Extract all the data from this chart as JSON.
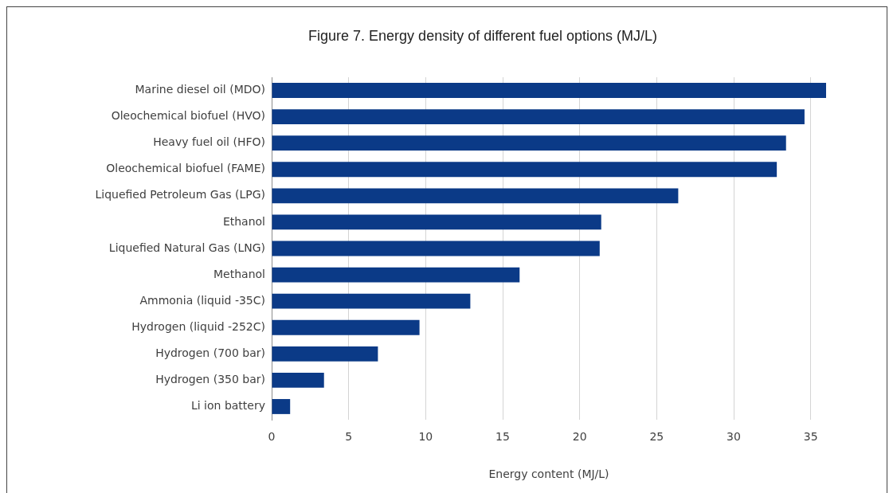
{
  "chart_data": {
    "type": "bar",
    "orientation": "horizontal",
    "title": "Figure 7. Energy density of different fuel options (MJ/L)",
    "xlabel": "Energy content (MJ/L)",
    "categories": [
      "Marine diesel oil (MDO)",
      "Oleochemical biofuel (HVO)",
      "Heavy fuel oil (HFO)",
      "Oleochemical biofuel (FAME)",
      "Liquefied Petroleum Gas (LPG)",
      "Ethanol",
      "Liquefied Natural Gas (LNG)",
      "Methanol",
      "Ammonia (liquid -35C)",
      "Hydrogen (liquid -252C)",
      "Hydrogen (700 bar)",
      "Hydrogen (350 bar)",
      "Li ion battery"
    ],
    "values": [
      36,
      34.6,
      33.4,
      32.8,
      26.4,
      21.4,
      21.3,
      16.1,
      12.9,
      9.6,
      6.9,
      3.4,
      1.2
    ],
    "color": "#0b3a87",
    "xlim": [
      0,
      36
    ],
    "xticks": [
      0,
      5,
      10,
      15,
      20,
      25,
      30,
      35
    ],
    "grid": "x"
  }
}
